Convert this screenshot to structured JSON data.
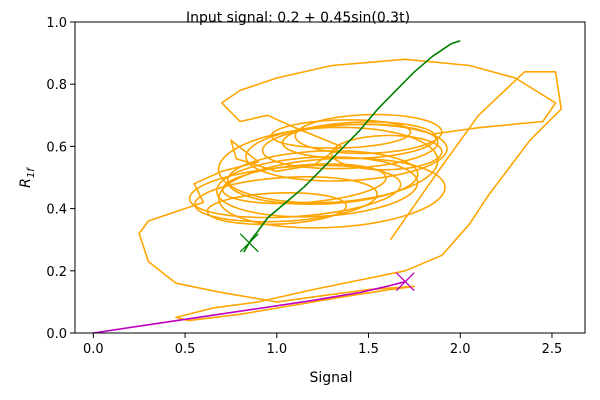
{
  "chart_data": {
    "type": "line",
    "title": "Input signal: 0.2 + 0.45sin(0.3t)",
    "xlabel": "Signal",
    "ylabel": "R",
    "ylabel_subscript": "1f",
    "xlim": [
      -0.1,
      2.68
    ],
    "ylim": [
      0.0,
      1.0
    ],
    "xticks": [
      "0.0",
      "0.5",
      "1.0",
      "1.5",
      "2.0",
      "2.5"
    ],
    "xtick_values": [
      0.0,
      0.5,
      1.0,
      1.5,
      2.0,
      2.5
    ],
    "yticks": [
      "0.0",
      "0.2",
      "0.4",
      "0.6",
      "0.8",
      "1.0"
    ],
    "ytick_values": [
      0.0,
      0.2,
      0.4,
      0.6,
      0.8,
      1.0
    ],
    "grid": false,
    "series": [
      {
        "color": "#ffa500",
        "style": "trajectory",
        "points": [
          [
            1.62,
            0.3
          ],
          [
            1.88,
            0.52
          ],
          [
            2.1,
            0.7
          ],
          [
            2.35,
            0.84
          ],
          [
            2.52,
            0.84
          ],
          [
            2.55,
            0.72
          ],
          [
            2.38,
            0.62
          ],
          [
            2.15,
            0.44
          ],
          [
            2.05,
            0.35
          ],
          [
            1.9,
            0.25
          ],
          [
            1.7,
            0.2
          ],
          [
            1.45,
            0.17
          ],
          [
            1.2,
            0.14
          ],
          [
            0.9,
            0.1
          ],
          [
            0.65,
            0.08
          ],
          [
            0.45,
            0.05
          ],
          [
            0.52,
            0.04
          ],
          [
            0.8,
            0.06
          ],
          [
            1.1,
            0.09
          ],
          [
            1.4,
            0.12
          ],
          [
            1.62,
            0.14
          ],
          [
            1.75,
            0.15
          ],
          [
            1.5,
            0.14
          ],
          [
            1.25,
            0.12
          ],
          [
            1.0,
            0.1
          ],
          [
            0.7,
            0.13
          ],
          [
            0.45,
            0.16
          ],
          [
            0.3,
            0.23
          ],
          [
            0.25,
            0.32
          ],
          [
            0.3,
            0.36
          ],
          [
            0.4,
            0.38
          ],
          [
            0.6,
            0.42
          ],
          [
            0.55,
            0.48
          ],
          [
            0.7,
            0.52
          ],
          [
            0.9,
            0.55
          ],
          [
            0.75,
            0.62
          ],
          [
            0.78,
            0.56
          ],
          [
            1.0,
            0.52
          ],
          [
            1.2,
            0.54
          ],
          [
            1.35,
            0.6
          ],
          [
            1.1,
            0.66
          ],
          [
            0.95,
            0.7
          ],
          [
            0.8,
            0.68
          ],
          [
            0.7,
            0.74
          ],
          [
            0.8,
            0.78
          ],
          [
            1.0,
            0.82
          ],
          [
            1.3,
            0.86
          ],
          [
            1.7,
            0.88
          ],
          [
            2.05,
            0.86
          ],
          [
            2.3,
            0.82
          ],
          [
            2.52,
            0.74
          ],
          [
            2.45,
            0.68
          ],
          [
            2.1,
            0.66
          ],
          [
            1.85,
            0.64
          ]
        ]
      },
      {
        "color": "#ffa500",
        "style": "loops",
        "loops": [
          {
            "cx": 1.3,
            "cy": 0.45,
            "rx": 0.62,
            "ry": 0.11,
            "rot": 0.12
          },
          {
            "cx": 1.22,
            "cy": 0.47,
            "rx": 0.55,
            "ry": 0.095,
            "rot": 0.1
          },
          {
            "cx": 1.1,
            "cy": 0.455,
            "rx": 0.58,
            "ry": 0.08,
            "rot": 0.14
          },
          {
            "cx": 1.05,
            "cy": 0.43,
            "rx": 0.5,
            "ry": 0.07,
            "rot": 0.12
          },
          {
            "cx": 1.15,
            "cy": 0.48,
            "rx": 0.45,
            "ry": 0.06,
            "rot": 0.15
          },
          {
            "cx": 1.25,
            "cy": 0.5,
            "rx": 0.52,
            "ry": 0.085,
            "rot": 0.08
          },
          {
            "cx": 1.4,
            "cy": 0.6,
            "rx": 0.48,
            "ry": 0.07,
            "rot": 0.1
          },
          {
            "cx": 1.45,
            "cy": 0.62,
            "rx": 0.42,
            "ry": 0.058,
            "rot": 0.07
          },
          {
            "cx": 1.38,
            "cy": 0.58,
            "rx": 0.55,
            "ry": 0.09,
            "rot": 0.09
          },
          {
            "cx": 1.5,
            "cy": 0.64,
            "rx": 0.4,
            "ry": 0.062,
            "rot": 0.06
          },
          {
            "cx": 1.35,
            "cy": 0.64,
            "rx": 0.38,
            "ry": 0.045,
            "rot": 0.05
          },
          {
            "cx": 1.28,
            "cy": 0.54,
            "rx": 0.6,
            "ry": 0.12,
            "rot": 0.11
          },
          {
            "cx": 1.0,
            "cy": 0.4,
            "rx": 0.38,
            "ry": 0.05,
            "rot": 0.08
          },
          {
            "cx": 1.6,
            "cy": 0.58,
            "rx": 0.3,
            "ry": 0.055,
            "rot": 0.04
          }
        ]
      },
      {
        "color": "#008000",
        "style": "line",
        "points": [
          [
            0.82,
            0.26
          ],
          [
            0.86,
            0.3
          ],
          [
            0.9,
            0.33
          ],
          [
            0.95,
            0.37
          ],
          [
            1.05,
            0.42
          ],
          [
            1.15,
            0.47
          ],
          [
            1.25,
            0.53
          ],
          [
            1.35,
            0.59
          ],
          [
            1.45,
            0.65
          ],
          [
            1.55,
            0.72
          ],
          [
            1.65,
            0.78
          ],
          [
            1.75,
            0.84
          ],
          [
            1.85,
            0.89
          ],
          [
            1.95,
            0.93
          ],
          [
            2.0,
            0.94
          ]
        ]
      },
      {
        "color": "#bf00bf",
        "style": "line",
        "points": [
          [
            0.0,
            0.0
          ],
          [
            0.4,
            0.035
          ],
          [
            0.8,
            0.07
          ],
          [
            1.2,
            0.105
          ],
          [
            1.45,
            0.13
          ],
          [
            1.6,
            0.15
          ],
          [
            1.7,
            0.165
          ]
        ]
      }
    ],
    "markers": [
      {
        "x": 0.85,
        "y": 0.29,
        "color": "#008000",
        "shape": "x"
      },
      {
        "x": 1.7,
        "y": 0.165,
        "color": "#bf00bf",
        "shape": "x"
      }
    ]
  }
}
